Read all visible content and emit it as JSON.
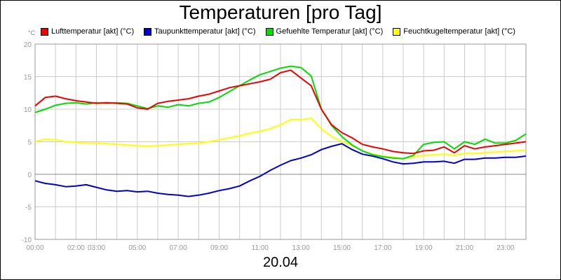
{
  "chart_data": {
    "type": "line",
    "title": "Temperaturen [pro Tag]",
    "date_label": "20.04",
    "unit_label": "°C",
    "ylim": [
      -10,
      20
    ],
    "y_ticks": [
      20,
      15,
      10,
      5,
      0,
      -5,
      -10
    ],
    "xlim": [
      0,
      24
    ],
    "x_ticks": [
      {
        "h": 0,
        "label": "00:00"
      },
      {
        "h": 2,
        "label": "02:00"
      },
      {
        "h": 3,
        "label": "03:00"
      },
      {
        "h": 5,
        "label": "05:00"
      },
      {
        "h": 7,
        "label": "07:00"
      },
      {
        "h": 9,
        "label": "09:00"
      },
      {
        "h": 11,
        "label": "11:00"
      },
      {
        "h": 13,
        "label": "13:00"
      },
      {
        "h": 15,
        "label": "15:00"
      },
      {
        "h": 17,
        "label": "17:00"
      },
      {
        "h": 19,
        "label": "19:00"
      },
      {
        "h": 21,
        "label": "21:00"
      },
      {
        "h": 23,
        "label": "23:00"
      }
    ],
    "grid": true,
    "legend_position": "top",
    "series": [
      {
        "name": "Lufttemperatur [akt] (°C)",
        "color": "#ee0000",
        "x": [
          0,
          0.5,
          1,
          1.5,
          2,
          2.5,
          3,
          3.5,
          4,
          4.5,
          5,
          5.5,
          6,
          6.5,
          7,
          7.5,
          8,
          8.5,
          9,
          9.5,
          10,
          10.5,
          11,
          11.5,
          12,
          12.5,
          13,
          13.5,
          14,
          14.5,
          15,
          15.5,
          16,
          16.5,
          17,
          17.5,
          18,
          18.5,
          19,
          19.5,
          20,
          20.5,
          21,
          21.5,
          22,
          22.5,
          23,
          23.5,
          24
        ],
        "y": [
          10.5,
          11.8,
          12.0,
          11.6,
          11.3,
          11.1,
          10.9,
          11.0,
          10.9,
          10.8,
          10.2,
          10.0,
          10.9,
          11.2,
          11.4,
          11.6,
          12.0,
          12.3,
          12.8,
          13.3,
          13.6,
          13.9,
          14.2,
          14.6,
          15.6,
          16.0,
          14.8,
          13.6,
          10.0,
          7.6,
          6.4,
          5.6,
          4.6,
          4.2,
          3.9,
          3.5,
          3.3,
          3.2,
          3.6,
          3.7,
          4.2,
          3.3,
          4.4,
          3.9,
          4.2,
          4.4,
          4.6,
          4.8,
          5.0
        ]
      },
      {
        "name": "Taupunkttemperatur [akt] (°C)",
        "color": "#0000cc",
        "x": [
          0,
          0.5,
          1,
          1.5,
          2,
          2.5,
          3,
          3.5,
          4,
          4.5,
          5,
          5.5,
          6,
          6.5,
          7,
          7.5,
          8,
          8.5,
          9,
          9.5,
          10,
          10.5,
          11,
          11.5,
          12,
          12.5,
          13,
          13.5,
          14,
          14.5,
          15,
          15.5,
          16,
          16.5,
          17,
          17.5,
          18,
          18.5,
          19,
          19.5,
          20,
          20.5,
          21,
          21.5,
          22,
          22.5,
          23,
          23.5,
          24
        ],
        "y": [
          -1.0,
          -1.4,
          -1.6,
          -1.9,
          -1.8,
          -1.6,
          -2.0,
          -2.4,
          -2.6,
          -2.5,
          -2.7,
          -2.6,
          -2.9,
          -3.1,
          -3.2,
          -3.4,
          -3.2,
          -2.9,
          -2.5,
          -2.2,
          -1.8,
          -1.0,
          -0.3,
          0.6,
          1.4,
          2.1,
          2.5,
          3.0,
          3.8,
          4.3,
          4.7,
          3.8,
          3.1,
          2.8,
          2.4,
          1.9,
          1.6,
          1.7,
          1.9,
          1.9,
          2.0,
          1.7,
          2.3,
          2.3,
          2.5,
          2.5,
          2.6,
          2.6,
          2.8
        ]
      },
      {
        "name": "Gefuehlte Temperatur [akt] (°C)",
        "color": "#00dd00",
        "x": [
          0,
          0.5,
          1,
          1.5,
          2,
          2.5,
          3,
          3.5,
          4,
          4.5,
          5,
          5.5,
          6,
          6.5,
          7,
          7.5,
          8,
          8.5,
          9,
          9.5,
          10,
          10.5,
          11,
          11.5,
          12,
          12.5,
          13,
          13.5,
          14,
          14.5,
          15,
          15.5,
          16,
          16.5,
          17,
          17.5,
          18,
          18.5,
          19,
          19.5,
          20,
          20.5,
          21,
          21.5,
          22,
          22.5,
          23,
          23.5,
          24
        ],
        "y": [
          9.5,
          10.0,
          10.6,
          10.9,
          11.0,
          10.8,
          11.0,
          10.9,
          11.0,
          10.9,
          10.5,
          10.1,
          10.5,
          10.3,
          10.7,
          10.5,
          10.9,
          11.1,
          11.8,
          12.7,
          13.6,
          14.5,
          15.3,
          15.8,
          16.3,
          16.6,
          16.4,
          15.1,
          10.0,
          7.5,
          5.8,
          4.5,
          3.6,
          3.0,
          2.7,
          2.5,
          2.4,
          2.9,
          4.6,
          4.9,
          5.0,
          3.9,
          5.0,
          4.6,
          5.4,
          4.8,
          4.8,
          5.2,
          6.2
        ]
      },
      {
        "name": "Feuchtkugeltemperatur [akt] (°C)",
        "color": "#ffff00",
        "x": [
          0,
          0.5,
          1,
          1.5,
          2,
          2.5,
          3,
          3.5,
          4,
          4.5,
          5,
          5.5,
          6,
          6.5,
          7,
          7.5,
          8,
          8.5,
          9,
          9.5,
          10,
          10.5,
          11,
          11.5,
          12,
          12.5,
          13,
          13.5,
          14,
          14.5,
          15,
          15.5,
          16,
          16.5,
          17,
          17.5,
          18,
          18.5,
          19,
          19.5,
          20,
          20.5,
          21,
          21.5,
          22,
          22.5,
          23,
          23.5,
          24
        ],
        "y": [
          5.0,
          5.4,
          5.3,
          5.0,
          4.9,
          4.8,
          4.8,
          4.7,
          4.6,
          4.5,
          4.4,
          4.3,
          4.4,
          4.5,
          4.6,
          4.7,
          4.8,
          5.0,
          5.3,
          5.6,
          5.9,
          6.3,
          6.6,
          7.0,
          7.6,
          8.4,
          8.4,
          8.6,
          7.0,
          5.8,
          5.0,
          4.4,
          3.6,
          3.1,
          2.8,
          2.6,
          2.4,
          2.7,
          2.9,
          3.0,
          3.1,
          2.9,
          3.2,
          3.2,
          3.3,
          3.4,
          3.5,
          3.6,
          3.7
        ]
      }
    ]
  }
}
